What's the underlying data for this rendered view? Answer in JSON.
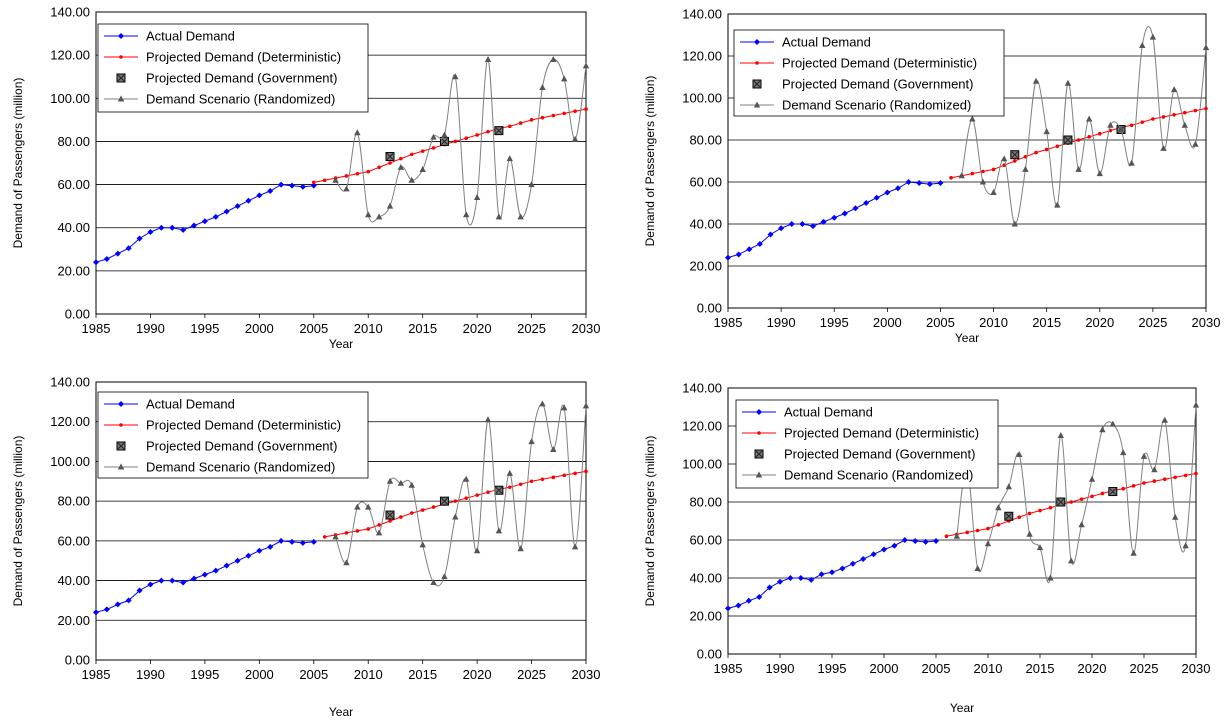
{
  "chart_data": [
    {
      "type": "line",
      "xlabel": "Year",
      "ylabel": "Demand of Passengers (million)",
      "xlim": [
        1985,
        2030
      ],
      "ylim": [
        0,
        140
      ],
      "x_ticks": [
        "1985",
        "1990",
        "1995",
        "2000",
        "2005",
        "2010",
        "2015",
        "2020",
        "2025",
        "2030"
      ],
      "y_ticks": [
        "0.00",
        "20.00",
        "40.00",
        "60.00",
        "80.00",
        "100.00",
        "120.00",
        "140.00"
      ],
      "grid": "horizontal",
      "legend_position": "top-left",
      "series": [
        {
          "name": "Actual Demand",
          "color": "#0000ff",
          "marker": "diamond",
          "smooth": false,
          "x": [
            1985,
            1986,
            1987,
            1988,
            1989,
            1990,
            1991,
            1992,
            1993,
            1994,
            1995,
            1996,
            1997,
            1998,
            1999,
            2000,
            2001,
            2002,
            2003,
            2004,
            2005
          ],
          "y": [
            24,
            25.5,
            28,
            30.5,
            35,
            38,
            40,
            40,
            39,
            41,
            43,
            45,
            47.5,
            50,
            52.5,
            55,
            57,
            60,
            59.5,
            59,
            59.5
          ]
        },
        {
          "name": "Projected Demand (Deterministic)",
          "color": "#ff0000",
          "marker": "dot",
          "smooth": false,
          "x": [
            2005,
            2006,
            2007,
            2008,
            2009,
            2010,
            2011,
            2012,
            2013,
            2014,
            2015,
            2016,
            2017,
            2018,
            2019,
            2020,
            2021,
            2022,
            2023,
            2024,
            2025,
            2026,
            2027,
            2028,
            2029,
            2030
          ],
          "y": [
            61,
            62,
            63,
            64,
            65,
            66,
            68,
            70,
            72,
            74,
            75.5,
            77,
            78.5,
            80,
            81.5,
            83,
            84.5,
            86,
            87,
            88.5,
            90,
            91,
            92,
            93,
            94,
            95
          ]
        },
        {
          "name": "Projected Demand (Government)",
          "color": "#333333",
          "marker": "square",
          "smooth": false,
          "x": [
            2012,
            2017,
            2022
          ],
          "y": [
            73,
            80,
            85
          ]
        },
        {
          "name": "Demand Scenario (Randomized)",
          "color": "#808080",
          "marker": "triangle",
          "smooth": true,
          "x": [
            2007,
            2008,
            2009,
            2010,
            2011,
            2012,
            2013,
            2014,
            2015,
            2016,
            2017,
            2018,
            2019,
            2020,
            2021,
            2022,
            2023,
            2024,
            2025,
            2026,
            2027,
            2028,
            2029,
            2030
          ],
          "y": [
            62,
            58,
            84,
            46,
            45,
            50,
            68,
            62,
            67,
            82,
            83,
            110,
            46,
            54,
            118,
            45,
            72,
            45,
            60,
            105,
            118,
            109,
            81,
            115
          ]
        }
      ]
    },
    {
      "type": "line",
      "xlabel": "Year",
      "ylabel": "Demand of Passengers (million)",
      "xlim": [
        1985,
        2030
      ],
      "ylim": [
        0,
        140
      ],
      "x_ticks": [
        "1985",
        "1990",
        "1995",
        "2000",
        "2005",
        "2010",
        "2015",
        "2020",
        "2025",
        "2030"
      ],
      "y_ticks": [
        "0.00",
        "20.00",
        "40.00",
        "60.00",
        "80.00",
        "100.00",
        "120.00",
        "140.00"
      ],
      "grid": "horizontal",
      "legend_position": "top-left",
      "series": [
        {
          "name": "Actual Demand",
          "color": "#0000ff",
          "marker": "diamond",
          "smooth": false,
          "x": [
            1985,
            1986,
            1987,
            1988,
            1989,
            1990,
            1991,
            1992,
            1993,
            1994,
            1995,
            1996,
            1997,
            1998,
            1999,
            2000,
            2001,
            2002,
            2003,
            2004,
            2005
          ],
          "y": [
            24,
            25.5,
            28,
            30.5,
            35,
            38,
            40,
            40,
            39,
            41,
            43,
            45,
            47.5,
            50,
            52.5,
            55,
            57,
            60,
            59.5,
            59,
            59.5
          ]
        },
        {
          "name": "Projected Demand (Deterministic)",
          "color": "#ff0000",
          "marker": "dot",
          "smooth": false,
          "x": [
            2006,
            2007,
            2008,
            2009,
            2010,
            2011,
            2012,
            2013,
            2014,
            2015,
            2016,
            2017,
            2018,
            2019,
            2020,
            2021,
            2022,
            2023,
            2024,
            2025,
            2026,
            2027,
            2028,
            2029,
            2030
          ],
          "y": [
            62,
            63,
            64,
            65,
            66,
            68,
            70,
            72,
            74,
            75.5,
            77,
            78.5,
            80,
            81.5,
            83,
            84.5,
            86,
            87,
            88.5,
            90,
            91,
            92,
            93,
            94,
            95
          ]
        },
        {
          "name": "Projected Demand (Government)",
          "color": "#333333",
          "marker": "square",
          "smooth": false,
          "x": [
            2012,
            2017,
            2022
          ],
          "y": [
            73,
            80,
            85
          ]
        },
        {
          "name": "Demand Scenario (Randomized)",
          "color": "#808080",
          "marker": "triangle",
          "smooth": true,
          "x": [
            2007,
            2008,
            2009,
            2010,
            2011,
            2012,
            2013,
            2014,
            2015,
            2016,
            2017,
            2018,
            2019,
            2020,
            2021,
            2022,
            2023,
            2024,
            2025,
            2026,
            2027,
            2028,
            2029,
            2030
          ],
          "y": [
            63,
            90,
            60,
            55,
            71,
            40,
            66,
            108,
            84,
            49,
            107,
            66,
            90,
            64,
            87,
            85,
            69,
            125,
            129,
            76,
            104,
            87,
            78,
            124
          ]
        }
      ]
    },
    {
      "type": "line",
      "xlabel": "Year",
      "ylabel": "Demand of Passengers (million)",
      "xlim": [
        1985,
        2030
      ],
      "ylim": [
        0,
        140
      ],
      "x_ticks": [
        "1985",
        "1990",
        "1995",
        "2000",
        "2005",
        "2010",
        "2015",
        "2020",
        "2025",
        "2030"
      ],
      "y_ticks": [
        "0.00",
        "20.00",
        "40.00",
        "60.00",
        "80.00",
        "100.00",
        "120.00",
        "140.00"
      ],
      "grid": "horizontal",
      "legend_position": "top-left",
      "series": [
        {
          "name": "Actual Demand",
          "color": "#0000ff",
          "marker": "diamond",
          "smooth": false,
          "x": [
            1985,
            1986,
            1987,
            1988,
            1989,
            1990,
            1991,
            1992,
            1993,
            1994,
            1995,
            1996,
            1997,
            1998,
            1999,
            2000,
            2001,
            2002,
            2003,
            2004,
            2005
          ],
          "y": [
            24,
            25.5,
            28,
            30,
            35,
            38,
            40,
            40,
            39,
            41,
            43,
            45,
            47.5,
            50,
            52.5,
            55,
            57,
            60,
            59.5,
            59,
            59.5
          ]
        },
        {
          "name": "Projected Demand (Deterministic)",
          "color": "#ff0000",
          "marker": "dot",
          "smooth": false,
          "x": [
            2006,
            2007,
            2008,
            2009,
            2010,
            2011,
            2012,
            2013,
            2014,
            2015,
            2016,
            2017,
            2018,
            2019,
            2020,
            2021,
            2022,
            2023,
            2024,
            2025,
            2026,
            2027,
            2028,
            2029,
            2030
          ],
          "y": [
            62,
            63,
            64,
            65,
            66,
            68,
            70,
            72,
            74,
            75.5,
            77,
            78.5,
            80,
            81.5,
            83,
            84.5,
            86,
            87,
            88.5,
            90,
            91,
            92,
            93,
            94,
            95
          ]
        },
        {
          "name": "Projected Demand (Government)",
          "color": "#333333",
          "marker": "square",
          "smooth": false,
          "x": [
            2012,
            2017,
            2022
          ],
          "y": [
            73,
            80,
            85.5
          ]
        },
        {
          "name": "Demand Scenario (Randomized)",
          "color": "#808080",
          "marker": "triangle",
          "smooth": true,
          "x": [
            2007,
            2008,
            2009,
            2010,
            2011,
            2012,
            2013,
            2014,
            2015,
            2016,
            2017,
            2018,
            2019,
            2020,
            2021,
            2022,
            2023,
            2024,
            2025,
            2026,
            2027,
            2028,
            2029,
            2030
          ],
          "y": [
            62,
            49,
            77,
            77,
            64,
            90,
            89,
            88,
            58,
            39,
            42,
            72,
            91,
            55,
            121,
            65,
            94,
            56,
            110,
            129,
            106,
            127,
            57,
            128
          ]
        }
      ]
    },
    {
      "type": "line",
      "xlabel": "Year",
      "ylabel": "Demand of Passengers (million)",
      "xlim": [
        1985,
        2030
      ],
      "ylim": [
        0,
        140
      ],
      "x_ticks": [
        "1985",
        "1990",
        "1995",
        "2000",
        "2005",
        "2010",
        "2015",
        "2020",
        "2025",
        "2030"
      ],
      "y_ticks": [
        "0.00",
        "20.00",
        "40.00",
        "60.00",
        "80.00",
        "100.00",
        "120.00",
        "140.00"
      ],
      "grid": "horizontal",
      "legend_position": "top-left",
      "series": [
        {
          "name": "Actual Demand",
          "color": "#0000ff",
          "marker": "diamond",
          "smooth": false,
          "x": [
            1985,
            1986,
            1987,
            1988,
            1989,
            1990,
            1991,
            1992,
            1993,
            1994,
            1995,
            1996,
            1997,
            1998,
            1999,
            2000,
            2001,
            2002,
            2003,
            2004,
            2005
          ],
          "y": [
            24,
            25.5,
            28,
            30,
            35,
            38,
            40,
            40,
            39,
            42,
            43,
            45,
            47.5,
            50,
            52.5,
            55,
            57,
            60,
            59.5,
            59,
            59.5
          ]
        },
        {
          "name": "Projected Demand (Deterministic)",
          "color": "#ff0000",
          "marker": "dot",
          "smooth": false,
          "x": [
            2006,
            2007,
            2008,
            2009,
            2010,
            2011,
            2012,
            2013,
            2014,
            2015,
            2016,
            2017,
            2018,
            2019,
            2020,
            2021,
            2022,
            2023,
            2024,
            2025,
            2026,
            2027,
            2028,
            2029,
            2030
          ],
          "y": [
            62,
            63,
            64,
            65,
            66,
            68,
            70,
            72,
            74,
            75.5,
            77,
            78.5,
            80,
            81.5,
            83,
            84.5,
            86,
            87,
            88.5,
            90,
            91,
            92,
            93,
            94,
            95
          ]
        },
        {
          "name": "Projected Demand (Government)",
          "color": "#333333",
          "marker": "square",
          "smooth": false,
          "x": [
            2012,
            2017,
            2022
          ],
          "y": [
            72.5,
            80,
            85.5
          ]
        },
        {
          "name": "Demand Scenario (Randomized)",
          "color": "#808080",
          "marker": "triangle",
          "smooth": true,
          "x": [
            2007,
            2008,
            2009,
            2010,
            2011,
            2012,
            2013,
            2014,
            2015,
            2016,
            2017,
            2018,
            2019,
            2020,
            2021,
            2022,
            2023,
            2024,
            2025,
            2026,
            2027,
            2028,
            2029,
            2030
          ],
          "y": [
            62,
            98,
            45,
            58,
            77,
            88,
            105,
            63,
            56,
            40,
            115,
            49,
            68,
            92,
            118,
            121,
            106,
            53,
            104,
            97,
            123,
            72,
            57,
            131
          ]
        }
      ]
    }
  ]
}
